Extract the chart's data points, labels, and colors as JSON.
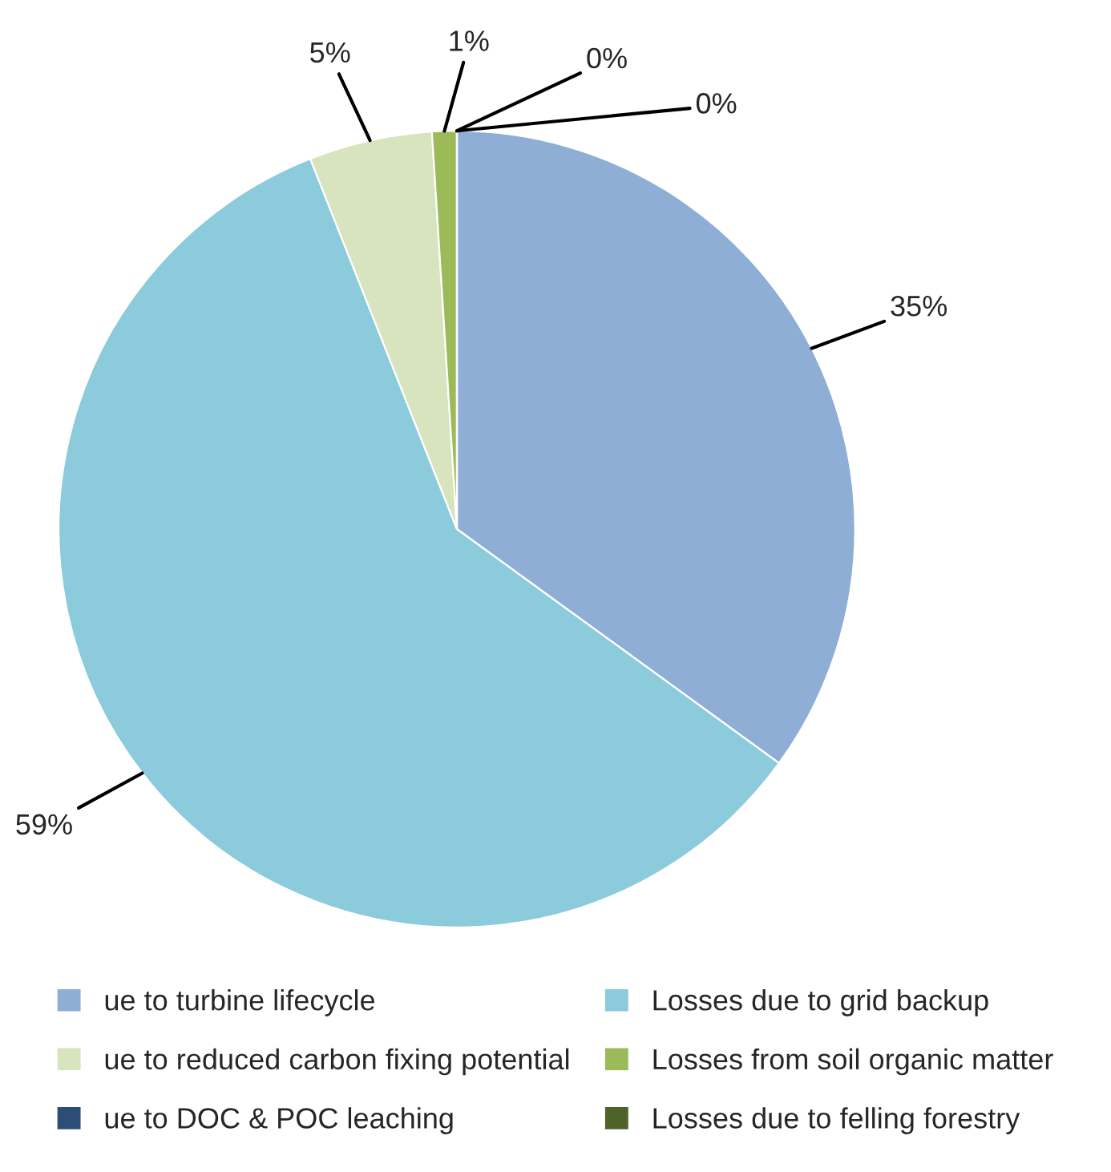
{
  "chart_data": {
    "type": "pie",
    "categories": [
      "ue to turbine lifecycle",
      "Losses due to grid backup",
      "ue to reduced carbon fixing potential",
      "Losses from soil organic matter",
      "ue to DOC & POC leaching",
      "Losses due to felling forestry"
    ],
    "values": [
      35,
      59,
      5,
      1,
      0,
      0
    ],
    "value_labels": [
      "35%",
      "59%",
      "5%",
      "1%",
      "0%",
      "0%"
    ],
    "colors": [
      "#8eaed6",
      "#8ccbdb",
      "#d7e4bd",
      "#9bbb59",
      "#2c4d75",
      "#4f6228"
    ],
    "legend": "bottom"
  }
}
